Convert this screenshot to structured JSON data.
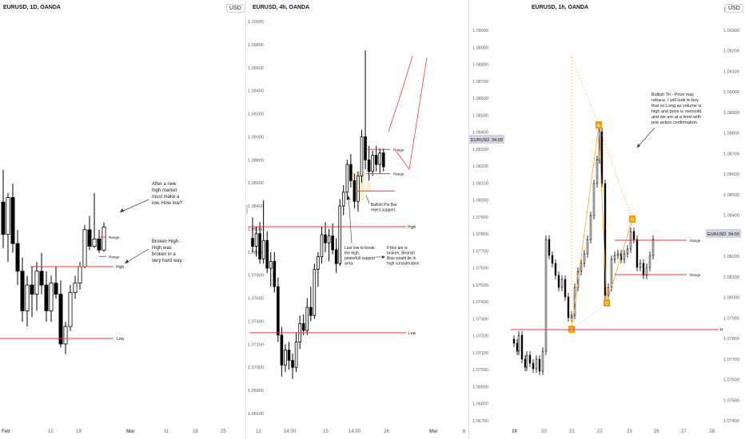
{
  "colors": {
    "up": "#ffffff",
    "down": "#000000",
    "line": "#f23645",
    "fib_box": "#f5d36b",
    "harmonic": "#ff9800",
    "text": "#131722",
    "grid_text": "#5d606b"
  },
  "chart_data": [
    {
      "type": "candlestick",
      "title": "EURUSD, 1D, OANDA",
      "currency_label": "USD",
      "x_ticks": [
        "Feb",
        "12",
        "19",
        "Mar",
        "11",
        "18",
        "25"
      ],
      "levels": [
        {
          "label": "High",
          "y": 1.08
        },
        {
          "label": "Low",
          "y": 1.0722
        },
        {
          "label": "Range",
          "y": 1.0832
        },
        {
          "label": "Range",
          "y": 1.0811
        }
      ],
      "annotations": [
        "After a new\nhigh market\nmust make a\nlow. How low?",
        "Broken High -\nHigh was\nbroken in a\nvery hard way."
      ],
      "candles": [
        [
          1.087,
          1.0905,
          1.082,
          1.0835
        ],
        [
          1.0835,
          1.088,
          1.0805,
          1.0875
        ],
        [
          1.0875,
          1.089,
          1.0815,
          1.0825
        ],
        [
          1.0825,
          1.084,
          1.078,
          1.0795
        ],
        [
          1.0795,
          1.081,
          1.074,
          1.0752
        ],
        [
          1.0752,
          1.079,
          1.0735,
          1.078
        ],
        [
          1.078,
          1.08,
          1.0745,
          1.077
        ],
        [
          1.077,
          1.0805,
          1.0752,
          1.0795
        ],
        [
          1.0795,
          1.0815,
          1.077,
          1.078
        ],
        [
          1.078,
          1.0795,
          1.074,
          1.0752
        ],
        [
          1.0752,
          1.079,
          1.074,
          1.0782
        ],
        [
          1.0782,
          1.08,
          1.0765,
          1.077
        ],
        [
          1.077,
          1.0785,
          1.0712,
          1.0716
        ],
        [
          1.0716,
          1.074,
          1.0705,
          1.0735
        ],
        [
          1.0735,
          1.078,
          1.073,
          1.0772
        ],
        [
          1.0772,
          1.079,
          1.0765,
          1.0782
        ],
        [
          1.0782,
          1.0805,
          1.0775,
          1.08
        ],
        [
          1.08,
          1.0845,
          1.0798,
          1.084
        ],
        [
          1.084,
          1.0855,
          1.0818,
          1.0822
        ],
        [
          1.0822,
          1.088,
          1.082,
          1.083
        ],
        [
          1.083,
          1.084,
          1.0815,
          1.0818
        ],
        [
          1.0818,
          1.0848,
          1.0816,
          1.0843
        ]
      ]
    },
    {
      "type": "candlestick",
      "title": "EURUSD, 4h, OANDA",
      "currency_label": "USD",
      "y_ticks": [
        1.1,
        1.098,
        1.096,
        1.094,
        1.092,
        1.09,
        1.088,
        1.086,
        1.084,
        1.082,
        1.08,
        1.078,
        1.076,
        1.074,
        1.072,
        1.07,
        1.068,
        1.066
      ],
      "y_tick_labels": [
        "1.10000",
        "1.09800",
        "1.09600",
        "1.09400",
        "1.09200",
        "1.09000",
        "1.08800",
        "1.08600",
        "1.08400",
        "1.08200",
        "1.08000",
        "1.07800",
        "1.07600",
        "1.07400",
        "1.07200",
        "1.07000",
        "1.06800",
        "1.06600"
      ],
      "x_ticks": [
        "12",
        "14:00",
        "15",
        "14:00",
        "26",
        "Mar",
        "6"
      ],
      "price_tag": {
        "symbol": "EURUSD",
        "time": "12:34:09",
        "value": 1.0837
      },
      "levels": [
        {
          "label": "High",
          "y": 1.0822
        },
        {
          "label": "Low",
          "y": 1.073
        },
        {
          "label": "Range",
          "y": 1.0889
        },
        {
          "label": "Range",
          "y": 1.0868
        }
      ],
      "annotations": [
        "Bullish Pin Bar\nreject support.",
        "Last low to break\nthe high,\npowerfull support\narea.",
        "If this are is\nbroken, Bearish\nBias would  be in\nhigh consideration"
      ],
      "candles": [
        [
          1.0812,
          1.083,
          1.08,
          1.0805
        ],
        [
          1.0805,
          1.0822,
          1.0796,
          1.0816
        ],
        [
          1.0816,
          1.0826,
          1.079,
          1.0794
        ],
        [
          1.0794,
          1.0845,
          1.079,
          1.081
        ],
        [
          1.081,
          1.0818,
          1.0782,
          1.0786
        ],
        [
          1.0786,
          1.08,
          1.077,
          1.0792
        ],
        [
          1.0792,
          1.08,
          1.0765,
          1.077
        ],
        [
          1.077,
          1.0778,
          1.0722,
          1.0728
        ],
        [
          1.0728,
          1.0735,
          1.0692,
          1.0702
        ],
        [
          1.0702,
          1.072,
          1.0696,
          1.0715
        ],
        [
          1.0715,
          1.0722,
          1.0698,
          1.0706
        ],
        [
          1.0706,
          1.0712,
          1.069,
          1.07
        ],
        [
          1.07,
          1.073,
          1.0696,
          1.0722
        ],
        [
          1.0722,
          1.0745,
          1.0716,
          1.0738
        ],
        [
          1.0738,
          1.0746,
          1.0728,
          1.0732
        ],
        [
          1.0732,
          1.076,
          1.0728,
          1.0752
        ],
        [
          1.0752,
          1.077,
          1.074,
          1.0745
        ],
        [
          1.0745,
          1.079,
          1.0742,
          1.0785
        ],
        [
          1.0785,
          1.08,
          1.077,
          1.0796
        ],
        [
          1.0796,
          1.0822,
          1.079,
          1.0815
        ],
        [
          1.0815,
          1.0826,
          1.08,
          1.0808
        ],
        [
          1.0808,
          1.082,
          1.0792,
          1.0814
        ],
        [
          1.0814,
          1.0825,
          1.0798,
          1.0802
        ],
        [
          1.0802,
          1.0812,
          1.0782,
          1.079
        ],
        [
          1.079,
          1.0846,
          1.0788,
          1.084
        ],
        [
          1.084,
          1.0858,
          1.0832,
          1.0852
        ],
        [
          1.0852,
          1.088,
          1.0845,
          1.0876
        ],
        [
          1.0876,
          1.0885,
          1.0856,
          1.0862
        ],
        [
          1.0862,
          1.0868,
          1.0838,
          1.0844
        ],
        [
          1.0844,
          1.087,
          1.0835,
          1.0866
        ],
        [
          1.0866,
          1.0906,
          1.086,
          1.09
        ],
        [
          1.09,
          1.0975,
          1.0872,
          1.088
        ],
        [
          1.088,
          1.0892,
          1.0862,
          1.087
        ],
        [
          1.087,
          1.0888,
          1.0866,
          1.0884
        ],
        [
          1.0884,
          1.0892,
          1.087,
          1.0876
        ],
        [
          1.0876,
          1.089,
          1.0868,
          1.0886
        ],
        [
          1.0886,
          1.089,
          1.087,
          1.0874
        ]
      ]
    },
    {
      "type": "candlestick",
      "title": "EURUSD, 1h, OANDA",
      "currency_label": "USD",
      "y_ticks_left": [
        1.09,
        1.089,
        1.088,
        1.087,
        1.086,
        1.085,
        1.084,
        1.083,
        1.082,
        1.081,
        1.08,
        1.079,
        1.078,
        1.077,
        1.076,
        1.075,
        1.074,
        1.073,
        1.072,
        1.071,
        1.07,
        1.069,
        1.068,
        1.067
      ],
      "y_tick_labels_left": [
        "1.09000",
        "1.08900",
        "1.08800",
        "1.08700",
        "1.08600",
        "1.08500",
        "1.08400",
        "1.08300",
        "1.08200",
        "1.08100",
        "1.08000",
        "1.07900",
        "1.07800",
        "1.07700",
        "1.07600",
        "1.07500",
        "1.07400",
        "1.07300",
        "1.07200",
        "1.07100",
        "1.07000",
        "1.06900",
        "1.06800",
        "1.06700"
      ],
      "y_tick_labels_right": [
        "1.09400",
        "1.09300",
        "1.09200",
        "1.09100",
        "1.09000",
        "1.08900",
        "1.08800",
        "1.08700",
        "1.08600",
        "1.08500",
        "1.08400",
        "1.08300",
        "1.08200",
        "1.08100",
        "1.08000",
        "1.07900",
        "1.07800",
        "1.07700",
        "1.07600",
        "1.07500",
        "1.07400"
      ],
      "x_ticks": [
        "19",
        "20",
        "21",
        "22",
        "23",
        "26",
        "27",
        "28"
      ],
      "price_tag_left": {
        "symbol": "EURUSD",
        "time": "34:09",
        "value": 1.0839
      },
      "price_tag_right": {
        "symbol": "EURUSD",
        "time": "34:09",
        "value": 1.0837
      },
      "levels": [
        {
          "label": "Range",
          "y": 1.0779
        },
        {
          "label": "Range",
          "y": 1.0755
        },
        {
          "label": "H",
          "y": 1.0725
        }
      ],
      "harmonic_points": [
        {
          "label": "A",
          "x": 0.22,
          "y": 1.0725
        },
        {
          "label": "B",
          "x": 0.38,
          "y": 1.0847
        },
        {
          "label": "C",
          "x": 0.46,
          "y": 1.0745
        },
        {
          "label": "D",
          "x": 0.58,
          "y": 1.079
        }
      ],
      "annotations": [
        "Bullish Tri - Price may\nretrace, I will look to buy\nthat so Long as volume is\nhigh and price is oversold\nand we are at a level with\nprie action confirmation."
      ]
    }
  ]
}
